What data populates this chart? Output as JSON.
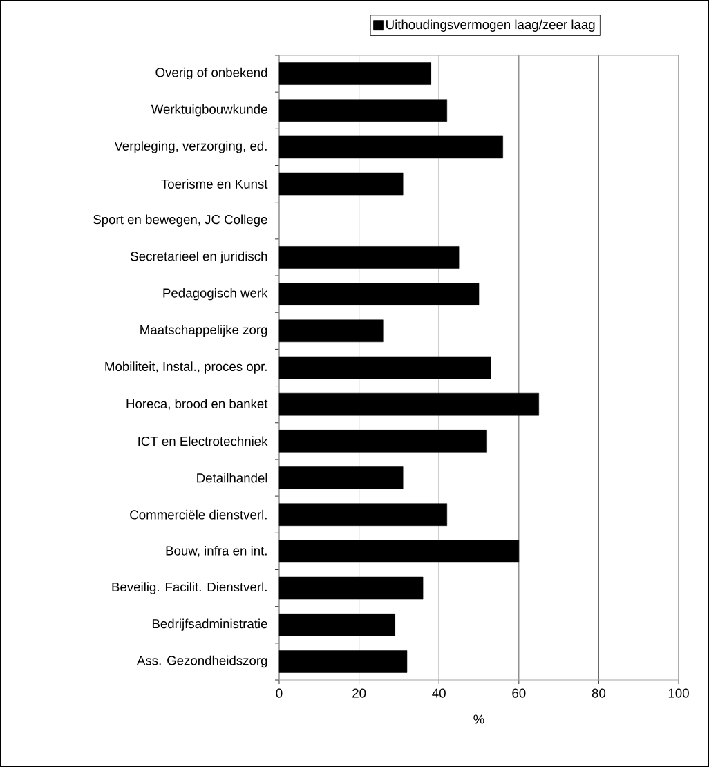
{
  "chart_data": {
    "type": "bar",
    "orientation": "horizontal",
    "categories": [
      "Overig of onbekend",
      "Werktuigbouwkunde",
      "Verpleging, verzorging, ed.",
      "Toerisme en Kunst",
      "Sport en bewegen, JC College",
      "Secretarieel en juridisch",
      "Pedagogisch werk",
      "Maatschappelijke zorg",
      "Mobiliteit, Instal., proces opr.",
      "Horeca, brood en banket",
      "ICT en Electrotechniek",
      "Detailhandel",
      "Commerciële dienstverl.",
      "Bouw, infra en int.",
      "Beveilig. Facilit. Dienstverl.",
      "Bedrijfsadministratie",
      "Ass. Gezondheidszorg"
    ],
    "series": [
      {
        "name": "Uithoudingsvermogen laag/zeer laag",
        "color": "#000000",
        "values": [
          38,
          42,
          56,
          31,
          null,
          45,
          50,
          26,
          53,
          65,
          52,
          31,
          42,
          60,
          36,
          29,
          32
        ]
      }
    ],
    "xlabel": "%",
    "xlim": [
      0,
      100
    ],
    "xticks": [
      0,
      20,
      40,
      60,
      80,
      100
    ],
    "grid": "x",
    "legend": "top"
  }
}
